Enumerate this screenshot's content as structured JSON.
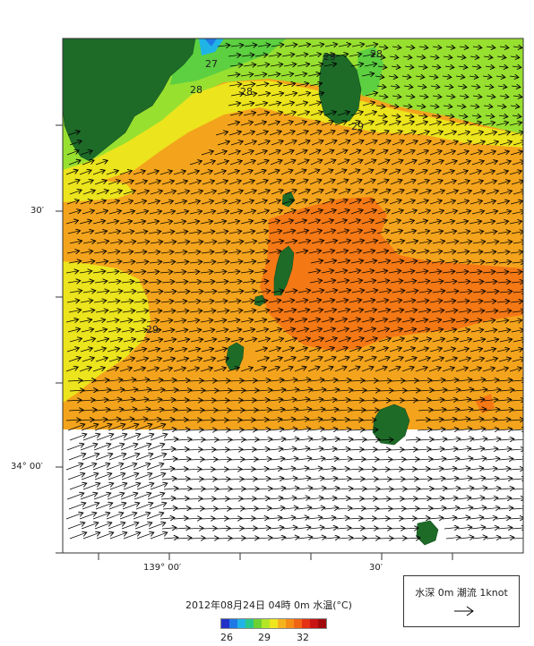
{
  "map": {
    "lat_labels": [
      "30′",
      "34° 00′"
    ],
    "lon_labels": [
      "139° 00′",
      "30′"
    ],
    "contour_labels": [
      "27",
      "28",
      "28",
      "29",
      "28",
      "29",
      "29"
    ]
  },
  "footer": {
    "caption": "2012年08月24日 04時 0m 水温(°C)",
    "colorbar_min": "26",
    "colorbar_mid": "29",
    "colorbar_max": "32",
    "colorbar_colors": [
      "#2030c8",
      "#1e78e6",
      "#20b4e6",
      "#28c88c",
      "#6cd232",
      "#b4e628",
      "#f0e61e",
      "#f5b41e",
      "#f58c14",
      "#f06414",
      "#e63214",
      "#c81414",
      "#a00a0a"
    ]
  },
  "legend": {
    "text": "水深 0m 潮流 1knot",
    "arrow_icon": "arrow-right-icon"
  },
  "colors": {
    "sea_orange": "#f4a41c",
    "sea_dark_orange": "#f47814",
    "sea_yellow": "#ece41c",
    "sea_lightgreen": "#98e030",
    "sea_green": "#5cd040",
    "land": "#1e6b28",
    "no_data": "#ffffff"
  }
}
